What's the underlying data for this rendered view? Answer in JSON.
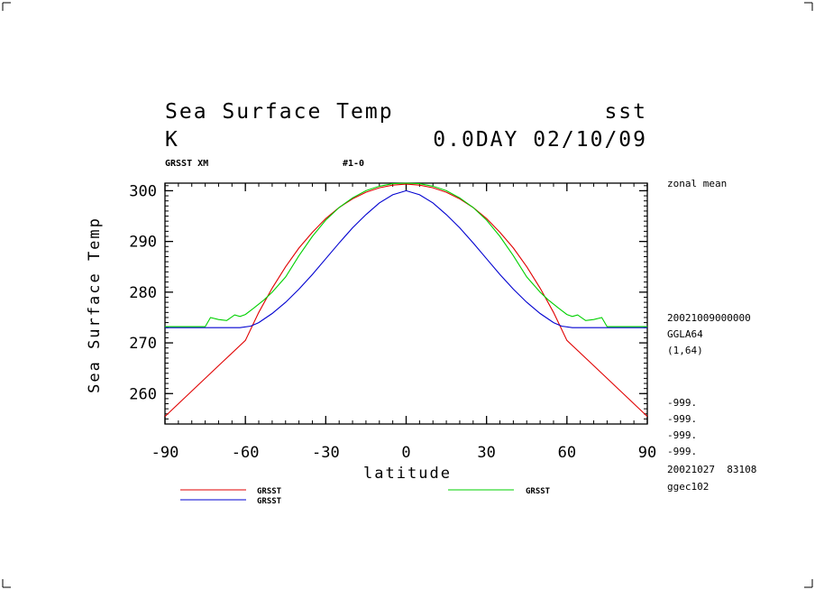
{
  "header": {
    "title_left": "Sea Surface Temp",
    "title_right": "sst",
    "unit": "K",
    "time_label": "0.0DAY 02/10/09",
    "sub_left": "GRSST XM",
    "sub_mid": "#1-0"
  },
  "side_info": {
    "zonal_mean": "zonal mean",
    "date": "20021009000000",
    "grid": "GGLA64",
    "index": "(1,64)",
    "missing": [
      "-999.",
      "-999.",
      "-999.",
      "-999."
    ],
    "stamp": "20021027  83108",
    "host": "ggec102"
  },
  "chart_data": {
    "type": "line",
    "title": "Sea Surface Temp",
    "xlabel": "latitude",
    "ylabel": "Sea Surface Temp",
    "xlim": [
      -90,
      90
    ],
    "ylim": [
      254,
      301.5
    ],
    "xticks": [
      -90,
      -60,
      -30,
      0,
      30,
      60,
      90
    ],
    "xtick_labels": [
      "-90",
      "-60",
      "-30",
      "0",
      "30",
      "60",
      "90"
    ],
    "yticks": [
      260,
      270,
      280,
      290,
      300
    ],
    "ytick_labels": [
      "260",
      "270",
      "280",
      "290",
      "300"
    ],
    "grid": false,
    "series": [
      {
        "name": "GRSST",
        "color": "#e00000",
        "x": [
          -90,
          -80,
          -70,
          -60,
          -55,
          -50,
          -45,
          -40,
          -35,
          -30,
          -25,
          -20,
          -15,
          -10,
          -5,
          0,
          5,
          10,
          15,
          20,
          25,
          30,
          35,
          40,
          45,
          50,
          55,
          60,
          70,
          80,
          90
        ],
        "y": [
          255.5,
          260.5,
          265.5,
          270.5,
          276.0,
          280.8,
          285.0,
          288.7,
          291.8,
          294.5,
          296.7,
          298.4,
          299.7,
          300.6,
          301.1,
          301.3,
          301.1,
          300.6,
          299.7,
          298.4,
          296.7,
          294.5,
          291.8,
          288.7,
          285.0,
          280.8,
          276.0,
          270.5,
          265.5,
          260.5,
          255.5
        ]
      },
      {
        "name": "GRSST",
        "color": "#0000d0",
        "x": [
          -90,
          -80,
          -70,
          -62,
          -58,
          -55,
          -50,
          -45,
          -40,
          -35,
          -30,
          -25,
          -20,
          -15,
          -10,
          -5,
          0,
          5,
          10,
          15,
          20,
          25,
          30,
          35,
          40,
          45,
          50,
          55,
          58,
          62,
          70,
          80,
          90
        ],
        "y": [
          273.0,
          273.0,
          273.0,
          273.0,
          273.3,
          274.0,
          275.8,
          278.0,
          280.6,
          283.5,
          286.6,
          289.7,
          292.7,
          295.3,
          297.6,
          299.2,
          300.0,
          299.2,
          297.6,
          295.3,
          292.7,
          289.7,
          286.6,
          283.5,
          280.6,
          278.0,
          275.8,
          274.0,
          273.3,
          273.0,
          273.0,
          273.0,
          273.0
        ]
      },
      {
        "name": "GRSST",
        "color": "#00d000",
        "x": [
          -90,
          -75,
          -73,
          -70,
          -67,
          -64,
          -62,
          -60,
          -57,
          -53,
          -50,
          -45,
          -40,
          -35,
          -30,
          -25,
          -20,
          -15,
          -10,
          -5,
          0,
          5,
          10,
          15,
          20,
          25,
          30,
          35,
          40,
          45,
          50,
          53,
          57,
          60,
          62,
          64,
          67,
          70,
          73,
          75,
          90
        ],
        "y": [
          273.2,
          273.2,
          275.0,
          274.6,
          274.4,
          275.5,
          275.2,
          275.6,
          276.8,
          278.5,
          280.0,
          283.0,
          287.2,
          291.0,
          294.2,
          296.7,
          298.6,
          300.0,
          300.9,
          301.4,
          301.5,
          301.4,
          300.9,
          300.0,
          298.6,
          296.7,
          294.2,
          291.0,
          287.2,
          283.0,
          280.0,
          278.5,
          276.8,
          275.6,
          275.2,
          275.5,
          274.4,
          274.6,
          275.0,
          273.2,
          273.2
        ]
      }
    ],
    "legend": {
      "placement": "bottom"
    }
  }
}
